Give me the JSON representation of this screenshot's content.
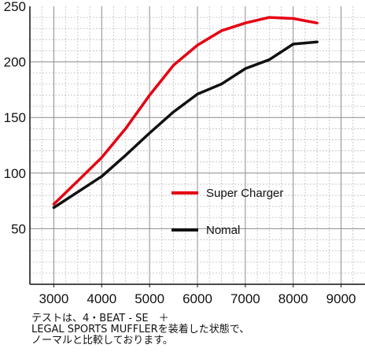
{
  "chart_data": {
    "type": "line",
    "x_ticks": [
      3000,
      4000,
      5000,
      6000,
      7000,
      8000,
      9000
    ],
    "y_ticks": [
      50,
      100,
      150,
      200,
      250
    ],
    "xlim": [
      2500,
      9500
    ],
    "ylim": [
      0,
      250
    ],
    "grid": true,
    "legend_placement": "center-right",
    "series": [
      {
        "name": "Super Charger",
        "color": "#e60012",
        "x": [
          3000,
          3500,
          4000,
          4500,
          5000,
          5500,
          6000,
          6500,
          7000,
          7500,
          8000,
          8500
        ],
        "y": [
          72,
          93,
          114,
          140,
          170,
          197,
          215,
          228,
          235,
          240,
          239,
          235
        ]
      },
      {
        "name": "Nomal",
        "color": "#111111",
        "x": [
          3000,
          3500,
          4000,
          4500,
          5000,
          5500,
          6000,
          6500,
          7000,
          7500,
          8000,
          8500
        ],
        "y": [
          69,
          83,
          97,
          116,
          136,
          155,
          171,
          180,
          194,
          202,
          216,
          218
        ]
      }
    ]
  },
  "note": {
    "line1": "テストは、4・BEAT - SE　＋",
    "line2": "LEGAL SPORTS MUFFLERを装着した状態で、",
    "line3": "ノーマルと比較しております。"
  }
}
